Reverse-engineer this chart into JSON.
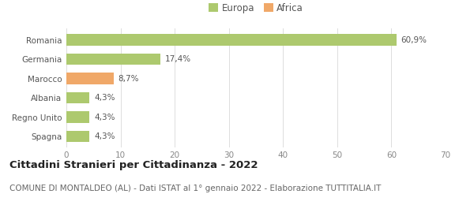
{
  "categories": [
    "Spagna",
    "Regno Unito",
    "Albania",
    "Marocco",
    "Germania",
    "Romania"
  ],
  "values": [
    4.3,
    4.3,
    4.3,
    8.7,
    17.4,
    60.9
  ],
  "labels": [
    "4,3%",
    "4,3%",
    "4,3%",
    "8,7%",
    "17,4%",
    "60,9%"
  ],
  "colors": [
    "#adc96e",
    "#adc96e",
    "#adc96e",
    "#f0a868",
    "#adc96e",
    "#adc96e"
  ],
  "legend_items": [
    {
      "label": "Europa",
      "color": "#adc96e"
    },
    {
      "label": "Africa",
      "color": "#f0a868"
    }
  ],
  "xlim": [
    0,
    70
  ],
  "xticks": [
    0,
    10,
    20,
    30,
    40,
    50,
    60,
    70
  ],
  "title": "Cittadini Stranieri per Cittadinanza - 2022",
  "subtitle": "COMUNE DI MONTALDEO (AL) - Dati ISTAT al 1° gennaio 2022 - Elaborazione TUTTITALIA.IT",
  "background_color": "#ffffff",
  "grid_color": "#dddddd",
  "title_fontsize": 9.5,
  "subtitle_fontsize": 7.5,
  "label_fontsize": 7.5,
  "tick_fontsize": 7.5
}
